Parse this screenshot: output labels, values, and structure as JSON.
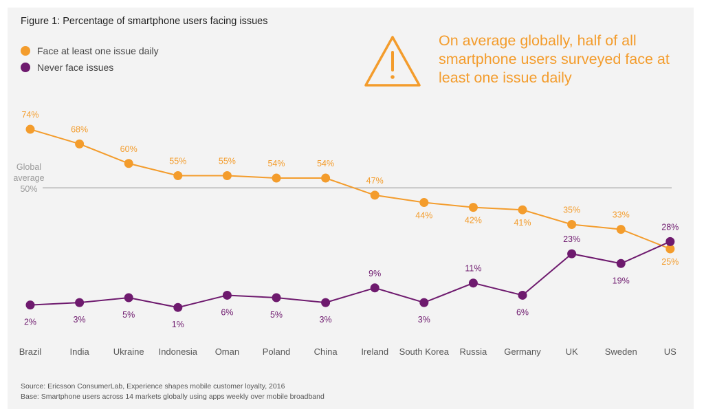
{
  "figure": {
    "title": "Figure 1: Percentage of smartphone users facing issues",
    "callout": "On average globally, half of all smartphone users surveyed face at least one issue daily",
    "warning_icon": "warning-triangle-icon",
    "source": "Source: Ericsson ConsumerLab, Experience shapes mobile customer loyalty, 2016",
    "base": "Base: Smartphone users across 14 markets globally using apps weekly over mobile broadband"
  },
  "chart_data": {
    "type": "line",
    "title": "Figure 1: Percentage of smartphone users facing issues",
    "xlabel": "",
    "ylabel": "",
    "ylim": [
      0,
      80
    ],
    "grid": false,
    "legend_position": "top-left",
    "categories": [
      "Brazil",
      "India",
      "Ukraine",
      "Indonesia",
      "Oman",
      "Poland",
      "China",
      "Ireland",
      "South Korea",
      "Russia",
      "Germany",
      "UK",
      "Sweden",
      "US"
    ],
    "series": [
      {
        "name": "Face at least one issue daily",
        "color": "#f39c2c",
        "values": [
          74,
          68,
          60,
          55,
          55,
          54,
          54,
          47,
          44,
          42,
          41,
          35,
          33,
          25
        ],
        "labels": [
          "74%",
          "68%",
          "60%",
          "55%",
          "55%",
          "54%",
          "54%",
          "47%",
          "44%",
          "42%",
          "41%",
          "35%",
          "33%",
          "25%"
        ]
      },
      {
        "name": "Never face issues",
        "color": "#6e1a6e",
        "values": [
          2,
          3,
          5,
          1,
          6,
          5,
          3,
          9,
          3,
          11,
          6,
          23,
          19,
          28
        ],
        "labels": [
          "2%",
          "3%",
          "5%",
          "1%",
          "6%",
          "5%",
          "3%",
          "9%",
          "3%",
          "11%",
          "6%",
          "23%",
          "19%",
          "28%"
        ]
      }
    ],
    "reference_line": {
      "label_line1": "Global",
      "label_line2": "average",
      "label_line3": "50%",
      "value": 50,
      "color": "#b3b3b3"
    }
  }
}
